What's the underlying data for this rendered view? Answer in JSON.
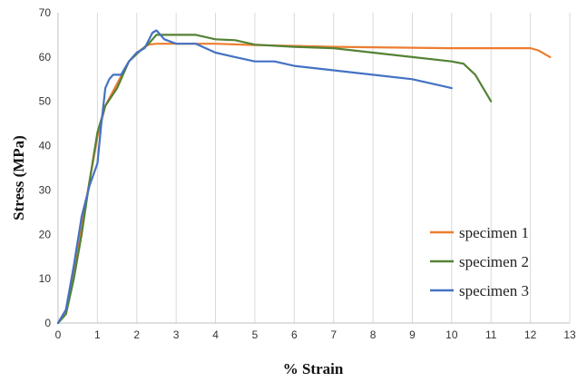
{
  "chart_data": {
    "type": "line",
    "title": "",
    "xlabel": "% Strain",
    "ylabel": "Stress (MPa)",
    "xlim": [
      0,
      13
    ],
    "ylim": [
      0,
      70
    ],
    "xticks": [
      0,
      1,
      2,
      3,
      4,
      5,
      6,
      7,
      8,
      9,
      10,
      11,
      12,
      13
    ],
    "yticks": [
      0,
      10,
      20,
      30,
      40,
      50,
      60,
      70
    ],
    "grid": "vertical",
    "legend_position": "right",
    "series": [
      {
        "name": "specimen 1",
        "color": "#ED7D31",
        "points": [
          [
            0,
            0
          ],
          [
            0.2,
            3
          ],
          [
            0.4,
            12
          ],
          [
            0.6,
            22
          ],
          [
            0.8,
            32
          ],
          [
            1.0,
            42
          ],
          [
            1.2,
            49
          ],
          [
            1.5,
            54
          ],
          [
            1.8,
            59
          ],
          [
            2.0,
            61
          ],
          [
            2.3,
            62.8
          ],
          [
            2.5,
            63
          ],
          [
            3,
            63
          ],
          [
            4,
            63
          ],
          [
            5,
            62.7
          ],
          [
            6,
            62.5
          ],
          [
            7,
            62.3
          ],
          [
            8,
            62.2
          ],
          [
            9,
            62.1
          ],
          [
            10,
            62
          ],
          [
            11,
            62
          ],
          [
            12,
            62
          ],
          [
            12.2,
            61.5
          ],
          [
            12.5,
            60
          ]
        ]
      },
      {
        "name": "specimen 2",
        "color": "#548235",
        "points": [
          [
            0,
            0
          ],
          [
            0.2,
            2
          ],
          [
            0.4,
            10
          ],
          [
            0.6,
            20
          ],
          [
            0.8,
            32
          ],
          [
            1.0,
            43
          ],
          [
            1.2,
            49
          ],
          [
            1.5,
            53
          ],
          [
            1.8,
            59
          ],
          [
            2.1,
            61.5
          ],
          [
            2.3,
            63
          ],
          [
            2.5,
            65
          ],
          [
            3,
            65
          ],
          [
            3.5,
            65
          ],
          [
            4,
            64
          ],
          [
            4.5,
            63.8
          ],
          [
            5,
            62.8
          ],
          [
            6,
            62.3
          ],
          [
            7,
            62
          ],
          [
            8,
            61
          ],
          [
            9,
            60
          ],
          [
            10,
            59
          ],
          [
            10.3,
            58.5
          ],
          [
            10.6,
            56
          ],
          [
            11,
            50
          ]
        ]
      },
      {
        "name": "specimen 3",
        "color": "#4472C4",
        "points": [
          [
            0,
            0
          ],
          [
            0.2,
            3
          ],
          [
            0.4,
            13
          ],
          [
            0.6,
            24
          ],
          [
            0.8,
            31
          ],
          [
            1.0,
            36
          ],
          [
            1.1,
            45
          ],
          [
            1.2,
            53
          ],
          [
            1.3,
            55
          ],
          [
            1.4,
            56
          ],
          [
            1.5,
            56
          ],
          [
            1.6,
            56
          ],
          [
            1.8,
            59
          ],
          [
            2.0,
            61
          ],
          [
            2.2,
            62
          ],
          [
            2.4,
            65.5
          ],
          [
            2.5,
            66
          ],
          [
            2.7,
            64
          ],
          [
            3,
            63
          ],
          [
            3.5,
            63
          ],
          [
            4,
            61
          ],
          [
            4.5,
            60
          ],
          [
            5,
            59
          ],
          [
            5.5,
            59
          ],
          [
            6,
            58
          ],
          [
            7,
            57
          ],
          [
            8,
            56
          ],
          [
            9,
            55
          ],
          [
            9.5,
            54
          ],
          [
            10,
            53
          ]
        ]
      }
    ]
  }
}
